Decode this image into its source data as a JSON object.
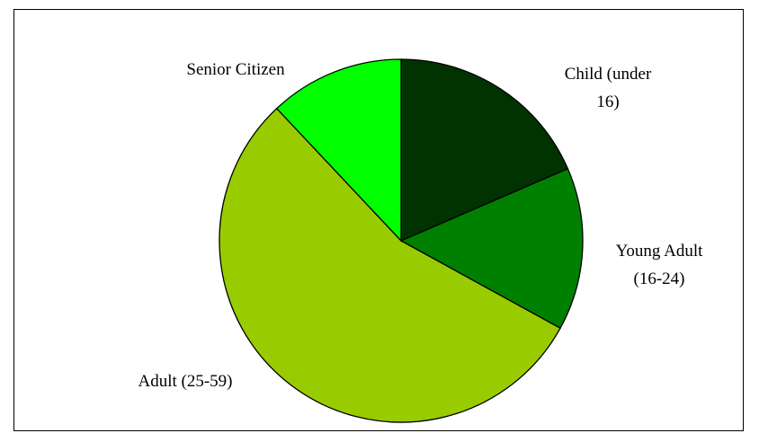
{
  "chart_data": {
    "type": "pie",
    "title": "",
    "categories": [
      "Child (under 16)",
      "Young Adult (16-24)",
      "Adult (25-59)",
      "Senior Citizen"
    ],
    "values": [
      18.5,
      14.5,
      55.0,
      12.0
    ],
    "colors": [
      "#003300",
      "#008000",
      "#99CC00",
      "#00FF00"
    ],
    "start_angle_deg": 0,
    "direction": "clockwise",
    "legend": "none",
    "labels": [
      {
        "lines": [
          "Child (under",
          "16)"
        ]
      },
      {
        "lines": [
          "Young Adult",
          "(16-24)"
        ]
      },
      {
        "lines": [
          "Adult (25-59)"
        ]
      },
      {
        "lines": [
          "Senior Citizen"
        ]
      }
    ]
  }
}
